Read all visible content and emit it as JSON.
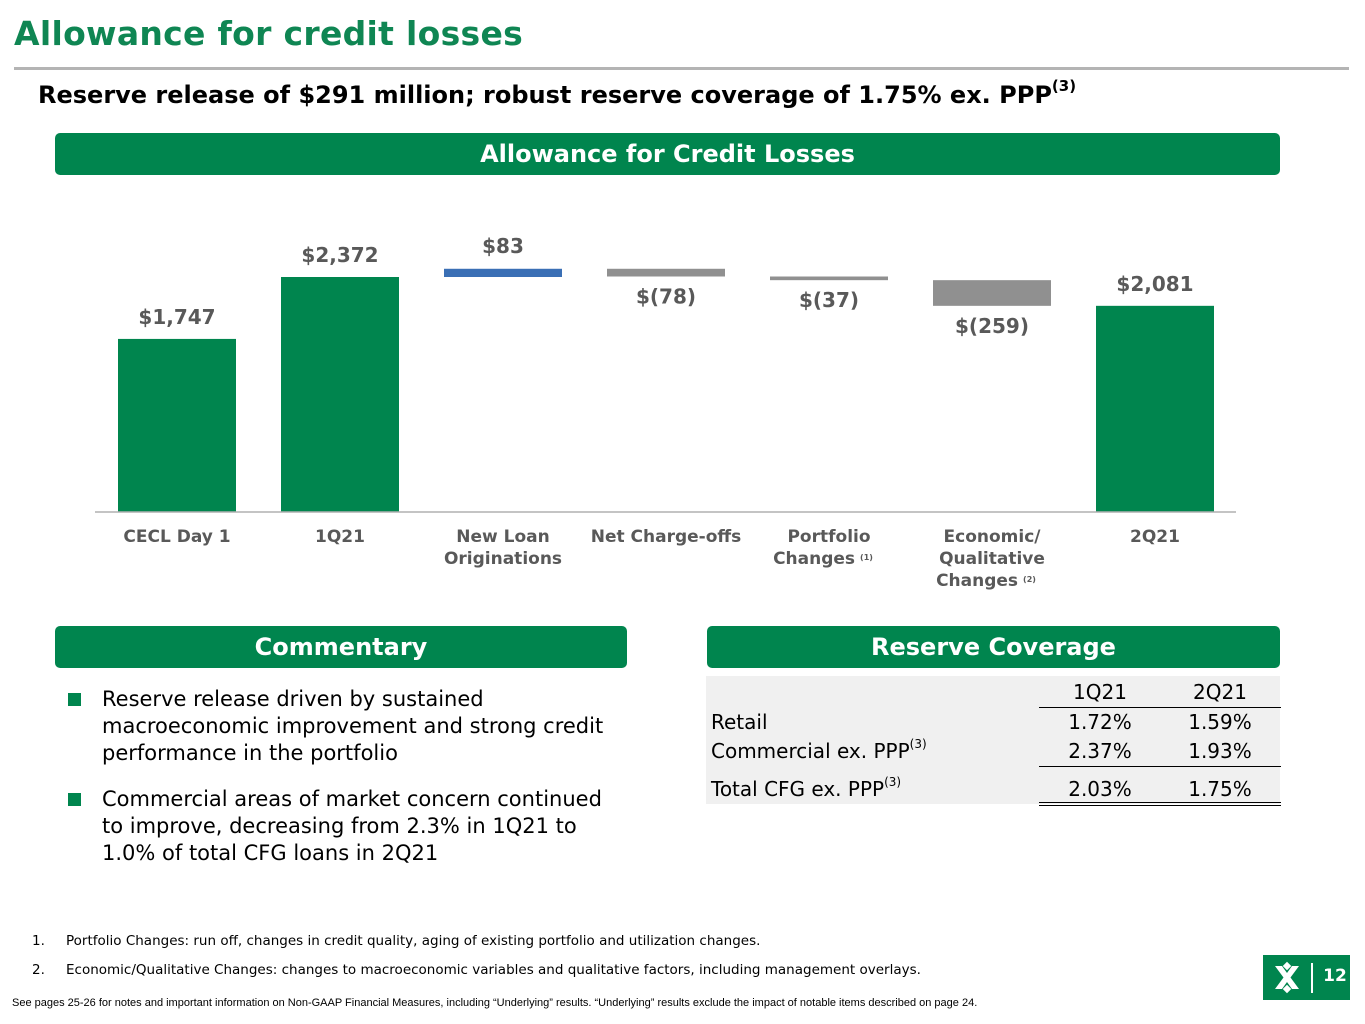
{
  "page": {
    "title": "Allowance for credit losses",
    "subtitle": "Reserve release of $291 million; robust reserve coverage of 1.75% ex. PPP",
    "subtitle_note": "(3)"
  },
  "sections": {
    "chart_band": "Allowance for Credit Losses",
    "commentary_band": "Commentary",
    "coverage_band": "Reserve Coverage"
  },
  "chart_data": {
    "type": "bar",
    "subtype": "waterfall",
    "title": "Allowance for Credit Losses",
    "categories": [
      "CECL Day 1",
      "1Q21",
      "New Loan Originations",
      "Net Charge-offs",
      "Portfolio Changes",
      "Economic/ Qualitative Changes",
      "2Q21"
    ],
    "category_lines": [
      [
        "CECL Day 1"
      ],
      [
        "1Q21"
      ],
      [
        "New Loan",
        "Originations"
      ],
      [
        "Net Charge-offs"
      ],
      [
        "Portfolio",
        "Changes"
      ],
      [
        "Economic/",
        "Qualitative",
        "Changes"
      ],
      [
        "2Q21"
      ]
    ],
    "category_notes": [
      "",
      "",
      "",
      "",
      "(1)",
      "(2)",
      ""
    ],
    "values": [
      1747,
      2372,
      83,
      -78,
      -37,
      -259,
      2081
    ],
    "kinds": [
      "total",
      "total",
      "delta",
      "delta",
      "delta",
      "delta",
      "total"
    ],
    "value_labels": [
      "$1,747",
      "$2,372",
      "$83",
      "$(78)",
      "$(37)",
      "$(259)",
      "$2,081"
    ],
    "units": "$ millions",
    "ylim": [
      0,
      2500
    ],
    "grid": false,
    "legend": "none",
    "colors": {
      "total": "#00854e",
      "increase": "#3a6fb5",
      "decrease": "#909090"
    }
  },
  "commentary": {
    "bullets": [
      "Reserve release driven by sustained macroeconomic improvement and strong credit performance in the portfolio",
      "Commercial areas of market concern continued to improve, decreasing from 2.3% in 1Q21 to 1.0% of total CFG loans in 2Q21"
    ]
  },
  "reserve_coverage": {
    "columns": [
      "1Q21",
      "2Q21"
    ],
    "rows": [
      {
        "label": "Retail",
        "note": "",
        "q1": "1.72%",
        "q2": "1.59%"
      },
      {
        "label": "Commercial ex. PPP",
        "note": "(3)",
        "q1": "2.37%",
        "q2": "1.93%"
      },
      {
        "label": "Total CFG ex. PPP",
        "note": "(3)",
        "q1": "2.03%",
        "q2": "1.75%"
      }
    ]
  },
  "footnotes": [
    {
      "num": "1.",
      "text": "Portfolio Changes: run off, changes in credit quality, aging of existing portfolio and utilization changes."
    },
    {
      "num": "2.",
      "text": "Economic/Qualitative Changes: changes to macroeconomic variables and qualitative factors, including management overlays."
    }
  ],
  "disclaimer": "See pages 25-26 for notes and important information on Non-GAAP Financial Measures, including “Underlying” results. “Underlying” results exclude the impact of notable items described on page 24.",
  "page_number": "12",
  "colors": {
    "brand_green": "#00854e",
    "title_green": "#0f8653"
  }
}
